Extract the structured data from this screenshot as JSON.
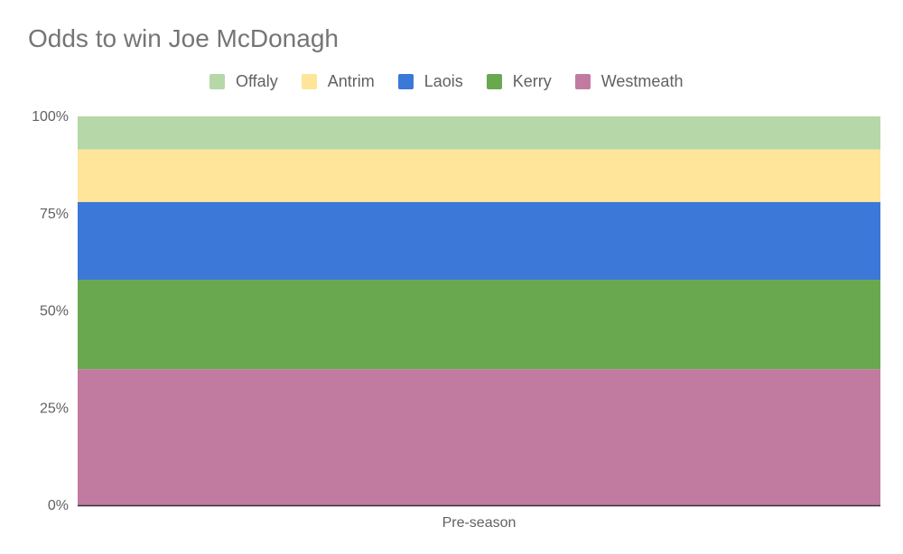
{
  "chart_data": {
    "type": "bar",
    "stacked": true,
    "percent_stacked": true,
    "title": "Odds to win Joe McDonagh",
    "categories": [
      "Pre-season"
    ],
    "series": [
      {
        "name": "Westmeath",
        "values": [
          35
        ],
        "color": "#c27ba0"
      },
      {
        "name": "Kerry",
        "values": [
          23
        ],
        "color": "#6aa84f"
      },
      {
        "name": "Laois",
        "values": [
          20
        ],
        "color": "#3c78d8"
      },
      {
        "name": "Antrim",
        "values": [
          13.5
        ],
        "color": "#ffe599"
      },
      {
        "name": "Offaly",
        "values": [
          8.5
        ],
        "color": "#b6d7a8"
      }
    ],
    "legend_order": [
      "Offaly",
      "Antrim",
      "Laois",
      "Kerry",
      "Westmeath"
    ],
    "legend_position": "top",
    "y_ticks": [
      "0%",
      "25%",
      "50%",
      "75%",
      "100%"
    ],
    "ylim": [
      0,
      100
    ],
    "xlabel": "",
    "ylabel": "",
    "grid": false
  }
}
